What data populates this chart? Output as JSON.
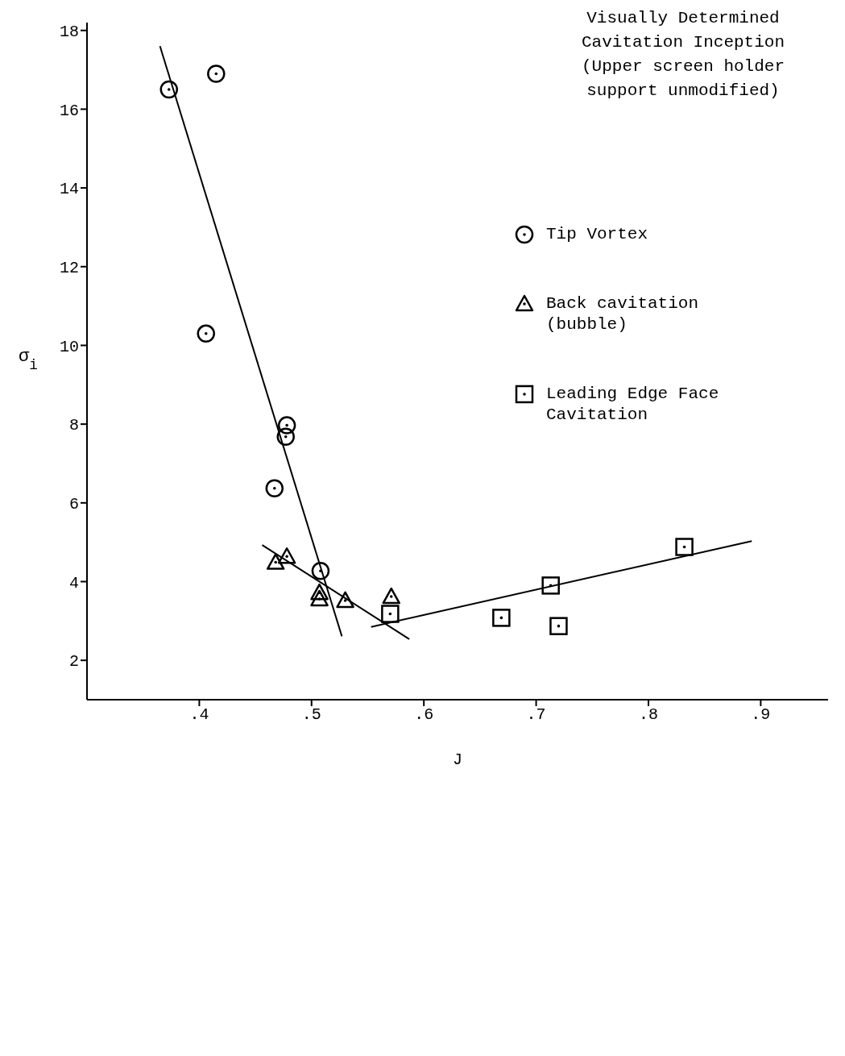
{
  "chart_data": {
    "type": "scatter",
    "title": "Visually Determined Cavitation Inception (Upper screen holder support unmodified)",
    "xlabel": "J",
    "ylabel": "σ$_{i}$",
    "xlim": [
      0.3,
      0.96
    ],
    "ylim": [
      1,
      18.2
    ],
    "xticks": [
      {
        "value": 0.4,
        "label": ".4"
      },
      {
        "value": 0.5,
        "label": ".5"
      },
      {
        "value": 0.6,
        "label": ".6"
      },
      {
        "value": 0.7,
        "label": ".7"
      },
      {
        "value": 0.8,
        "label": ".8"
      },
      {
        "value": 0.9,
        "label": ".9"
      }
    ],
    "yticks": [
      2,
      4,
      6,
      8,
      10,
      12,
      14,
      16,
      18
    ],
    "grid": false,
    "legend": "top right",
    "series": [
      {
        "name": "Tip Vortex",
        "marker": "circle",
        "color": "#000000",
        "x": [
          0.373,
          0.415,
          0.406,
          0.478,
          0.477,
          0.467,
          0.508
        ],
        "values": [
          16.5,
          16.9,
          10.3,
          7.97,
          7.68,
          6.37,
          4.27
        ]
      },
      {
        "name": "Back cavitation (bubble)",
        "marker": "triangle",
        "color": "#000000",
        "x": [
          0.468,
          0.478,
          0.507,
          0.507,
          0.53,
          0.571
        ],
        "values": [
          4.49,
          4.64,
          3.72,
          3.56,
          3.52,
          3.62
        ]
      },
      {
        "name": "Leading Edge Face Cavitation",
        "marker": "square",
        "color": "#000000",
        "x": [
          0.57,
          0.669,
          0.713,
          0.72,
          0.832
        ],
        "values": [
          3.18,
          3.08,
          3.9,
          2.87,
          4.88
        ]
      },
      {
        "type": "line",
        "marker": "none",
        "color": "#000000",
        "x": [
          0.365,
          0.527
        ],
        "values": [
          17.6,
          2.61
        ]
      },
      {
        "type": "line",
        "marker": "none",
        "color": "#000000",
        "x": [
          0.456,
          0.587
        ],
        "values": [
          4.93,
          2.54
        ]
      },
      {
        "type": "line",
        "marker": "none",
        "color": "#000000",
        "x": [
          0.553,
          0.892
        ],
        "values": [
          2.85,
          5.03
        ]
      }
    ]
  }
}
